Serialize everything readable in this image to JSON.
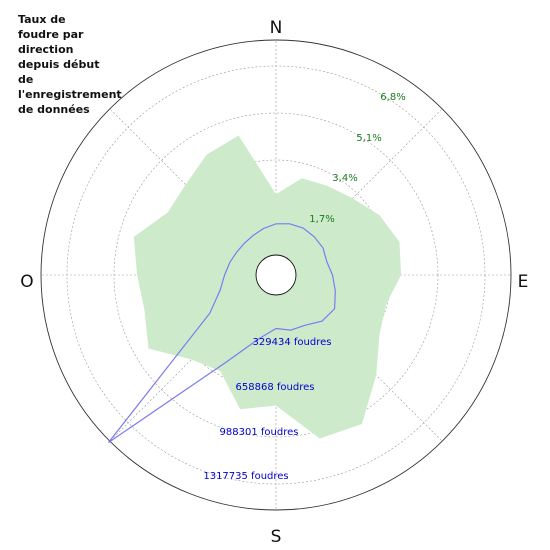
{
  "title": "Taux de\nfoudre par\ndirection\ndepuis début\nde\nl'enregistrement\nde données",
  "colors": {
    "rate_fill": "#cdebcb",
    "count_line": "#7b7bf0",
    "pct_label": "#1e7a1e",
    "count_label": "#0000cc",
    "grid": "#999999"
  },
  "chart_data": {
    "type": "polar",
    "compass": [
      "N",
      "E",
      "S",
      "O"
    ],
    "radial_pct_labels": [
      "1,7%",
      "3,4%",
      "5,1%",
      "6,8%"
    ],
    "radial_count_labels": [
      "329434 foudres",
      "658868 foudres",
      "988301 foudres",
      "1317735 foudres"
    ],
    "series": [
      {
        "kind": "rate_percent",
        "angles_deg": [
          0,
          15,
          30,
          45,
          60,
          75,
          90,
          105,
          120,
          135,
          150,
          165,
          180,
          195,
          210,
          225,
          240,
          255,
          270,
          285,
          300,
          315,
          330,
          345
        ],
        "values": [
          2.2,
          2.9,
          3.0,
          3.2,
          3.6,
          3.9,
          3.8,
          3.4,
          3.6,
          4.4,
          5.5,
          5.4,
          4.0,
          4.3,
          3.3,
          3.6,
          4.6,
          4.2,
          4.3,
          4.6,
          3.8,
          3.9,
          4.3,
          4.5
        ]
      },
      {
        "kind": "count",
        "angles_deg": [
          0,
          15,
          30,
          45,
          60,
          75,
          90,
          105,
          120,
          135,
          150,
          165,
          180,
          195,
          210,
          225,
          240,
          255,
          270,
          285,
          300,
          315,
          330,
          345
        ],
        "values": [
          219000,
          231000,
          240000,
          238000,
          240000,
          228000,
          256000,
          290000,
          334000,
          317000,
          267000,
          260000,
          235000,
          322000,
          570000,
          1520000,
          396000,
          265000,
          220000,
          196000,
          179000,
          174000,
          180000,
          197000
        ]
      }
    ]
  }
}
